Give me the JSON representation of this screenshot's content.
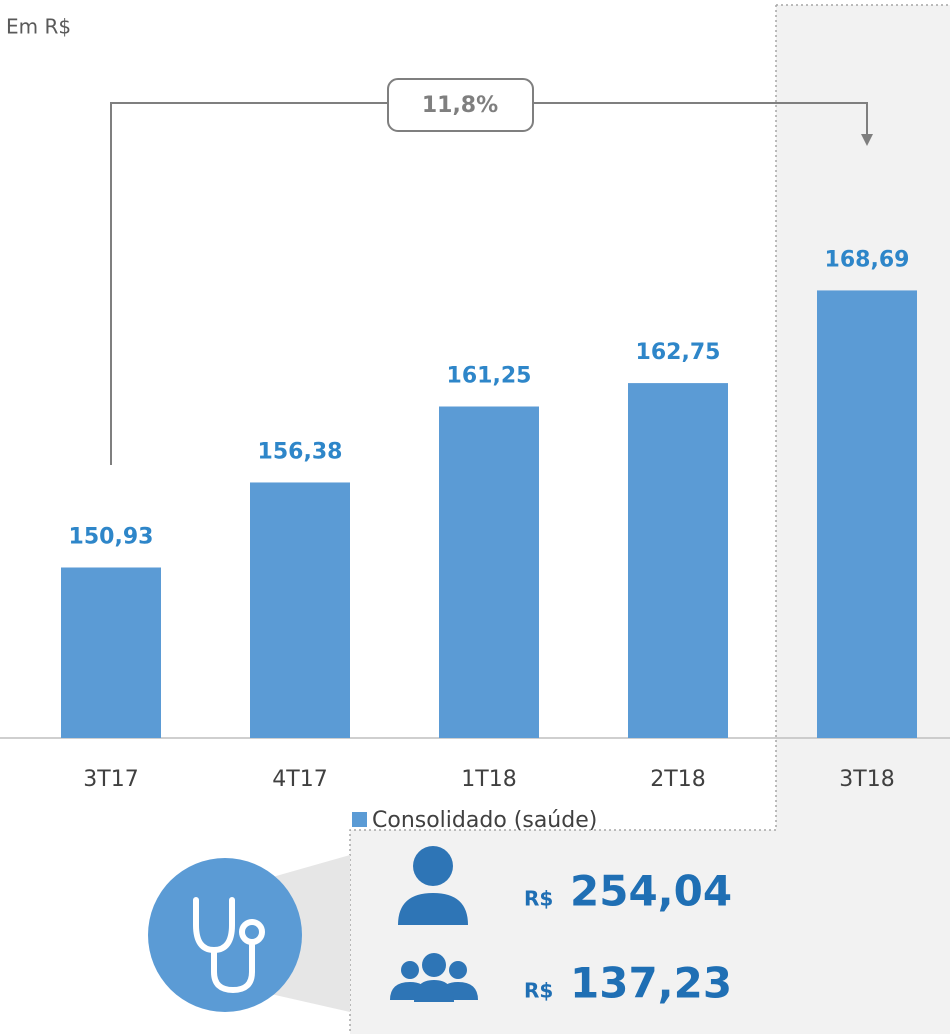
{
  "chart_data": {
    "type": "bar",
    "unit_label": "Em R$",
    "annotation": "11,8%",
    "categories": [
      "3T17",
      "4T17",
      "1T18",
      "2T18",
      "3T18"
    ],
    "series": [
      {
        "name": "Consolidado (saúde)",
        "color": "#5b9bd5",
        "values": [
          150.93,
          156.38,
          161.25,
          162.75,
          168.69
        ],
        "value_labels": [
          "150,93",
          "156,38",
          "161,25",
          "162,75",
          "168,69"
        ]
      }
    ],
    "ylim": [
      140,
      175
    ]
  },
  "highlights": [
    {
      "currency": "R$",
      "value": "254,04"
    },
    {
      "currency": "R$",
      "value": "137,23"
    }
  ]
}
